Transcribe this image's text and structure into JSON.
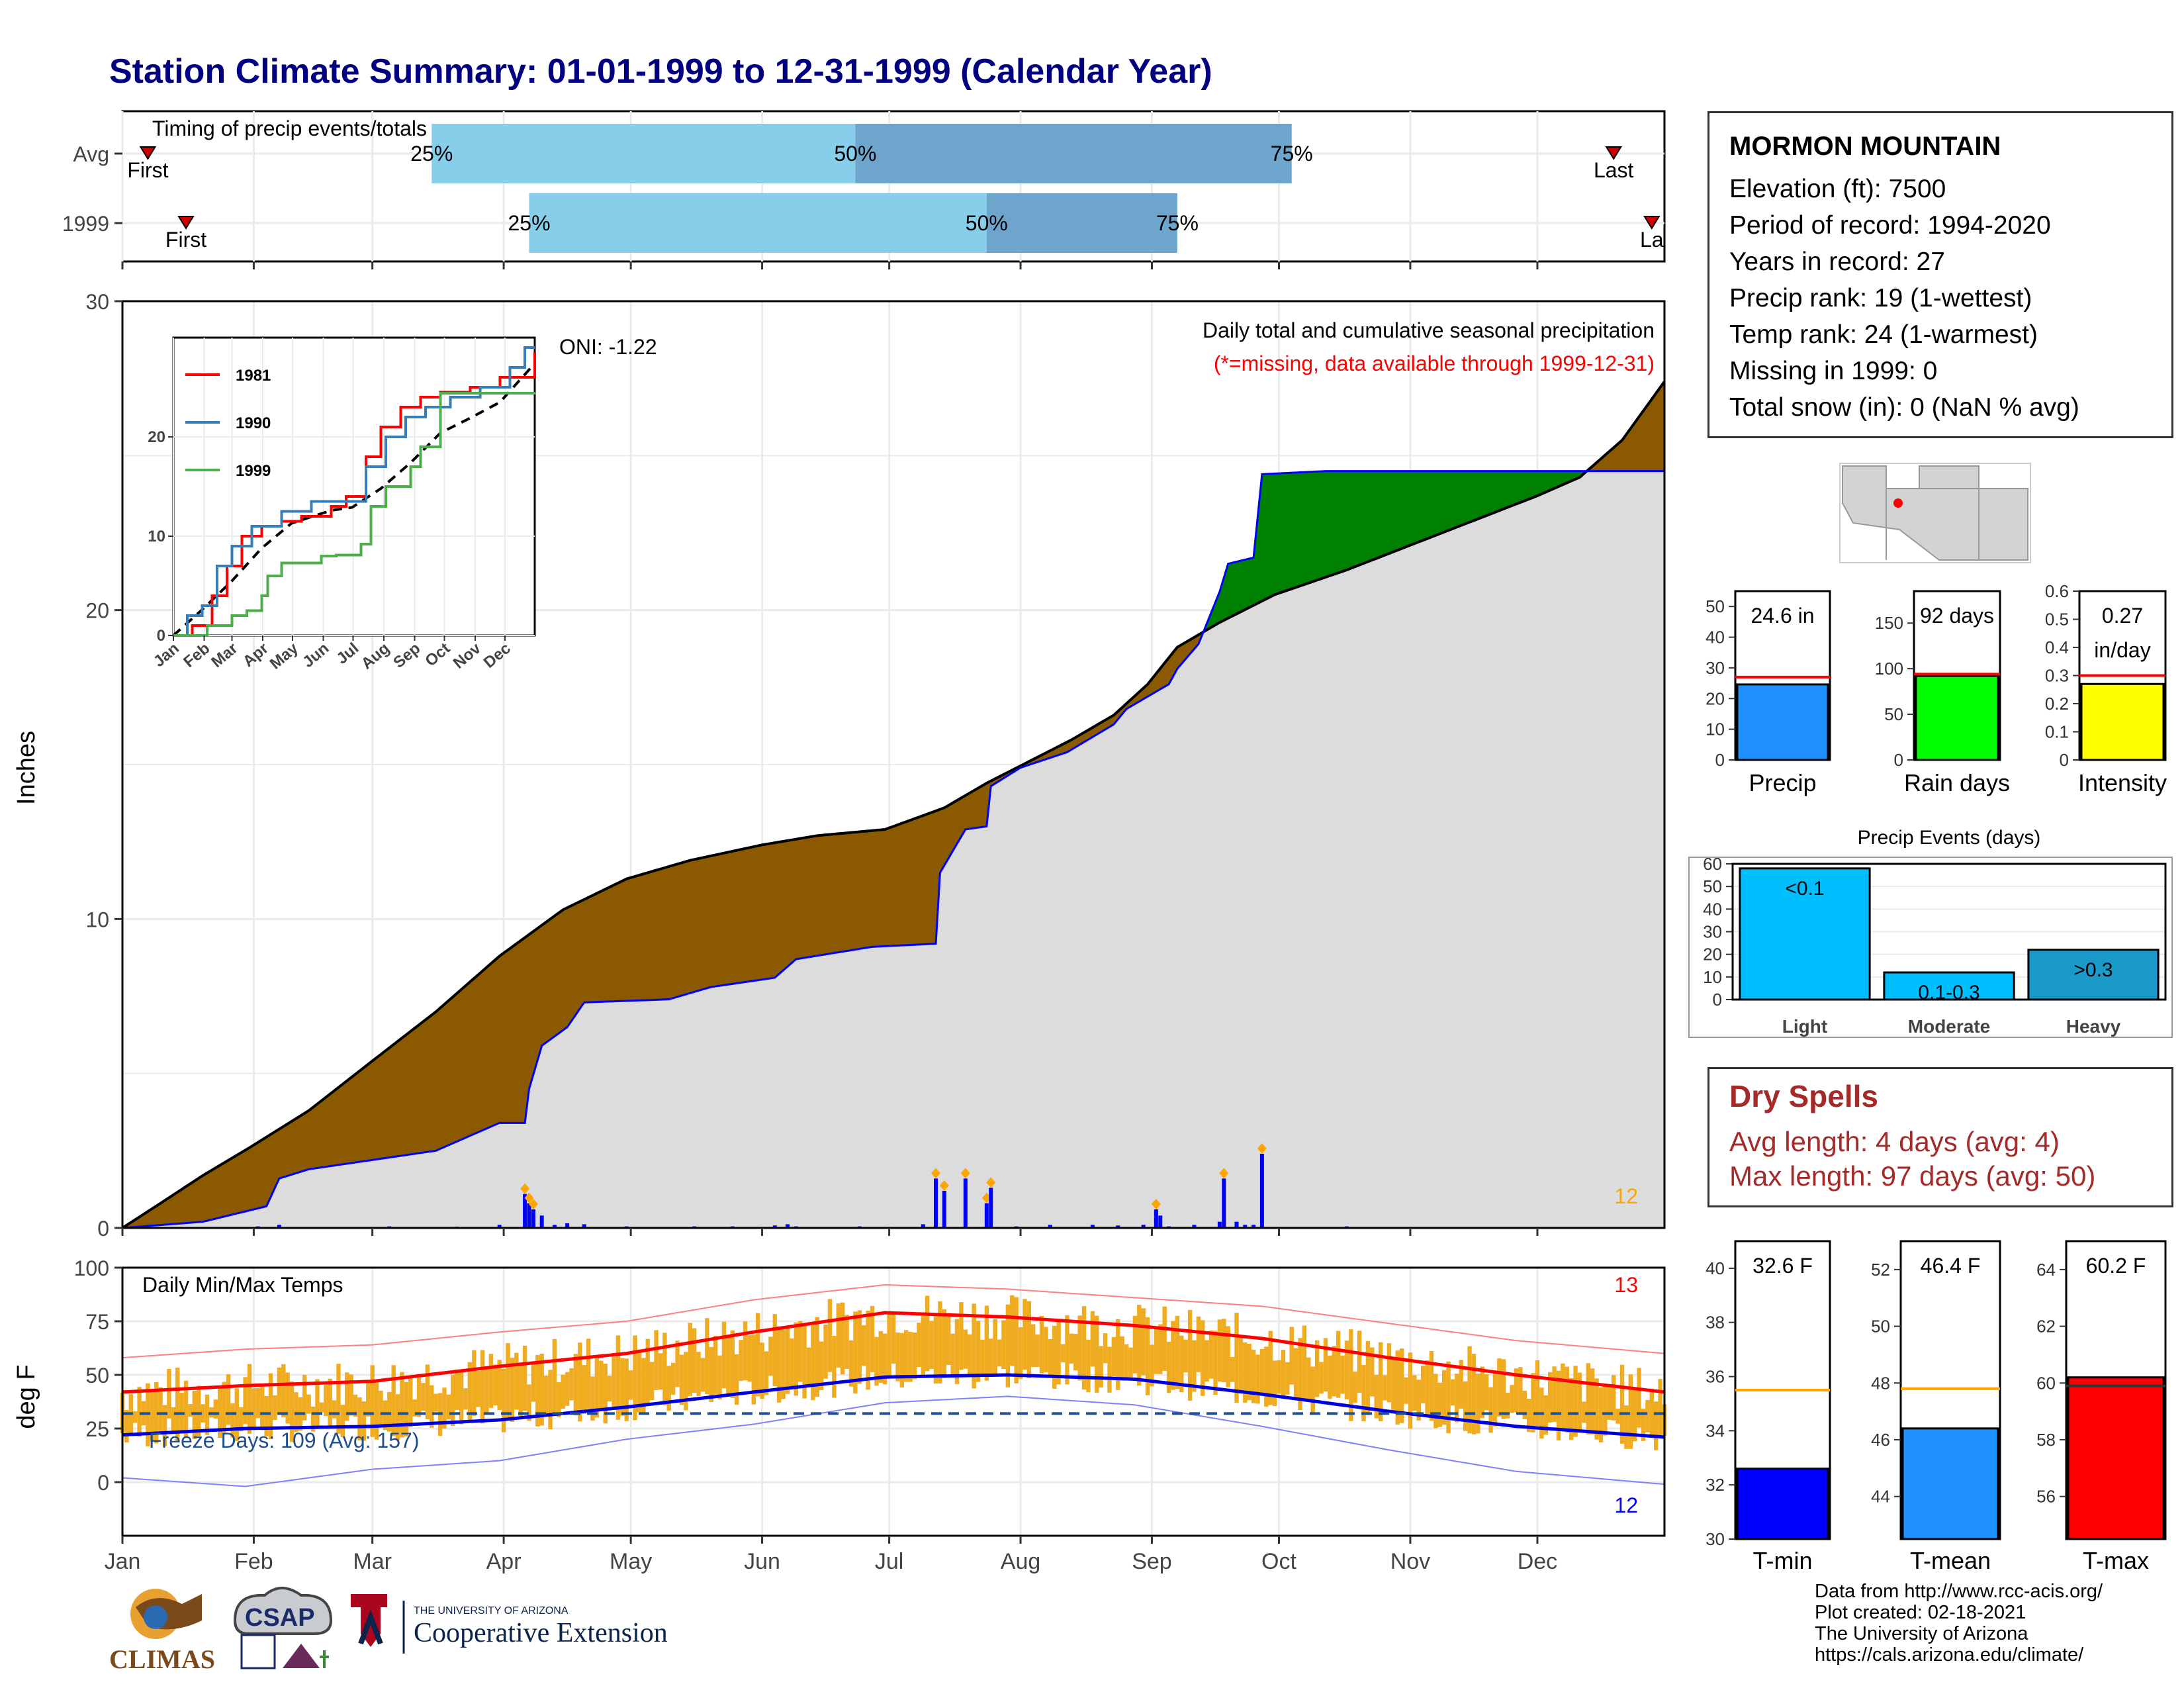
{
  "page_title": "Station Climate Summary: 01-01-1999 to 12-31-1999 (Calendar Year)",
  "station": {
    "name": "MORMON MOUNTAIN",
    "rows": [
      "Elevation (ft): 7500",
      "Period of record: 1994-2020",
      "Years in record: 27",
      "Precip rank: 19 (1-wettest)",
      "Temp rank: 24 (1-warmest)",
      "Missing in 1999: 0",
      "Total snow (in): 0 (NaN % avg)"
    ]
  },
  "dry_spells": {
    "heading": "Dry Spells",
    "avg": "Avg length: 4 days (avg: 4)",
    "max": "Max length: 97 days (avg: 50)"
  },
  "credits": [
    "Data from http://www.rcc-acis.org/",
    "Plot created: 02-18-2021",
    "The University of Arizona",
    "https://cals.arizona.edu/climate/"
  ],
  "logos": {
    "climas": "CLIMAS",
    "csap": "CSAP",
    "ua_line1": "THE UNIVERSITY OF ARIZONA",
    "ua_line2": "Cooperative Extension"
  },
  "colors": {
    "title": "#000080",
    "precip_deficit": "#8b5a00",
    "precip_surplus": "#008000",
    "avg_area": "#dcdcdc",
    "daily_precip": "#0000ff",
    "temp_bar": "#f0ac20",
    "tmax_line": "#ff0000",
    "tmin_line": "#0000dd",
    "timing_light": "#87ceeb",
    "timing_dark": "#6ea5cd"
  },
  "chart_data": [
    {
      "id": "timing",
      "type": "bar",
      "title": "Timing of precip events/totals",
      "rows": [
        {
          "label": "Avg",
          "first_doy": 7,
          "last_doy": 353,
          "q25": 74,
          "q50": 174,
          "q75": 277
        },
        {
          "label": "1999",
          "first_doy": 16,
          "last_doy": 362,
          "q25": 97,
          "q50": 205,
          "q75": 250
        }
      ],
      "quantile_labels": [
        "25%",
        "50%",
        "75%"
      ],
      "first_label": "First",
      "last_label": "Last",
      "last_label_1999": "La"
    },
    {
      "id": "cumulative",
      "type": "area",
      "title": "Daily total and cumulative seasonal precipitation",
      "subtitle": "(*=missing, data available through 1999-12-31)",
      "annotation": "ONI: -1.22",
      "corner_label": "12",
      "ylabel": "Inches",
      "ylim": [
        0,
        30
      ],
      "yticks": [
        0,
        10,
        20,
        30
      ],
      "avg_cumulative": [
        [
          1,
          0
        ],
        [
          10,
          0.8
        ],
        [
          20,
          1.7
        ],
        [
          31,
          2.6
        ],
        [
          45,
          3.8
        ],
        [
          59,
          5.3
        ],
        [
          75,
          7.0
        ],
        [
          90,
          8.8
        ],
        [
          105,
          10.3
        ],
        [
          120,
          11.3
        ],
        [
          135,
          11.9
        ],
        [
          152,
          12.4
        ],
        [
          165,
          12.7
        ],
        [
          181,
          12.9
        ],
        [
          195,
          13.6
        ],
        [
          205,
          14.4
        ],
        [
          215,
          15.1
        ],
        [
          225,
          15.8
        ],
        [
          235,
          16.6
        ],
        [
          243,
          17.6
        ],
        [
          250,
          18.8
        ],
        [
          260,
          19.6
        ],
        [
          273,
          20.5
        ],
        [
          290,
          21.3
        ],
        [
          305,
          22.1
        ],
        [
          320,
          22.9
        ],
        [
          335,
          23.7
        ],
        [
          345,
          24.3
        ],
        [
          355,
          25.5
        ],
        [
          365,
          27.4
        ]
      ],
      "obs_cumulative": [
        [
          1,
          0
        ],
        [
          20,
          0.2
        ],
        [
          35,
          0.7
        ],
        [
          38,
          1.6
        ],
        [
          45,
          1.9
        ],
        [
          60,
          2.2
        ],
        [
          75,
          2.5
        ],
        [
          90,
          3.4
        ],
        [
          96,
          3.4
        ],
        [
          97,
          4.5
        ],
        [
          100,
          5.9
        ],
        [
          106,
          6.5
        ],
        [
          110,
          7.3
        ],
        [
          130,
          7.4
        ],
        [
          140,
          7.8
        ],
        [
          155,
          8.1
        ],
        [
          160,
          8.7
        ],
        [
          178,
          9.1
        ],
        [
          193,
          9.2
        ],
        [
          194,
          11.5
        ],
        [
          200,
          12.9
        ],
        [
          205,
          13.0
        ],
        [
          206,
          14.3
        ],
        [
          213,
          14.9
        ],
        [
          224,
          15.4
        ],
        [
          235,
          16.3
        ],
        [
          238,
          16.8
        ],
        [
          248,
          17.6
        ],
        [
          250,
          18.1
        ],
        [
          255,
          18.9
        ],
        [
          260,
          20.6
        ],
        [
          262,
          21.5
        ],
        [
          268,
          21.7
        ],
        [
          270,
          24.4
        ],
        [
          285,
          24.5
        ],
        [
          365,
          24.5
        ]
      ],
      "daily_precip": [
        [
          5,
          0.05
        ],
        [
          18,
          0.02
        ],
        [
          33,
          0.05
        ],
        [
          38,
          0.1
        ],
        [
          50,
          0.03
        ],
        [
          64,
          0.05
        ],
        [
          72,
          0.03
        ],
        [
          80,
          0.04
        ],
        [
          90,
          0.1
        ],
        [
          96,
          1.1
        ],
        [
          97,
          0.8
        ],
        [
          98,
          0.6
        ],
        [
          100,
          0.4
        ],
        [
          103,
          0.1
        ],
        [
          106,
          0.15
        ],
        [
          110,
          0.12
        ],
        [
          120,
          0.05
        ],
        [
          128,
          0.03
        ],
        [
          136,
          0.05
        ],
        [
          145,
          0.05
        ],
        [
          155,
          0.08
        ],
        [
          158,
          0.12
        ],
        [
          160,
          0.05
        ],
        [
          175,
          0.05
        ],
        [
          190,
          0.12
        ],
        [
          193,
          1.6
        ],
        [
          195,
          1.2
        ],
        [
          200,
          1.6
        ],
        [
          205,
          0.8
        ],
        [
          206,
          1.3
        ],
        [
          212,
          0.05
        ],
        [
          220,
          0.1
        ],
        [
          230,
          0.1
        ],
        [
          236,
          0.08
        ],
        [
          242,
          0.1
        ],
        [
          245,
          0.6
        ],
        [
          246,
          0.4
        ],
        [
          248,
          0.05
        ],
        [
          254,
          0.1
        ],
        [
          260,
          0.2
        ],
        [
          261,
          1.6
        ],
        [
          264,
          0.2
        ],
        [
          266,
          0.1
        ],
        [
          268,
          0.1
        ],
        [
          270,
          2.4
        ],
        [
          290,
          0.05
        ]
      ]
    },
    {
      "id": "inset",
      "type": "line",
      "series": [
        {
          "name": "1981",
          "color": "#ff0000",
          "values": [
            [
              1,
              0
            ],
            [
              20,
              1
            ],
            [
              40,
              4
            ],
            [
              55,
              7
            ],
            [
              70,
              10
            ],
            [
              90,
              11
            ],
            [
              110,
              11.5
            ],
            [
              130,
              12
            ],
            [
              160,
              13
            ],
            [
              175,
              14
            ],
            [
              195,
              18
            ],
            [
              210,
              21
            ],
            [
              230,
              23
            ],
            [
              250,
              24
            ],
            [
              270,
              24.5
            ],
            [
              300,
              25
            ],
            [
              330,
              26
            ],
            [
              365,
              28.5
            ]
          ]
        },
        {
          "name": "1990",
          "color": "#377eb8",
          "values": [
            [
              1,
              0
            ],
            [
              15,
              2
            ],
            [
              30,
              3
            ],
            [
              45,
              7
            ],
            [
              60,
              9
            ],
            [
              80,
              11
            ],
            [
              110,
              12.5
            ],
            [
              140,
              13.5
            ],
            [
              170,
              13.5
            ],
            [
              195,
              17
            ],
            [
              215,
              20
            ],
            [
              235,
              22
            ],
            [
              255,
              23
            ],
            [
              280,
              24
            ],
            [
              310,
              25
            ],
            [
              340,
              27
            ],
            [
              355,
              29
            ],
            [
              365,
              29
            ]
          ]
        },
        {
          "name": "1999",
          "color": "#4daf4a",
          "values": [
            [
              1,
              0
            ],
            [
              35,
              1
            ],
            [
              60,
              2
            ],
            [
              75,
              2.5
            ],
            [
              90,
              4
            ],
            [
              96,
              6
            ],
            [
              110,
              7.3
            ],
            [
              150,
              8.0
            ],
            [
              165,
              8.1
            ],
            [
              190,
              9.2
            ],
            [
              200,
              13
            ],
            [
              215,
              15
            ],
            [
              240,
              17
            ],
            [
              250,
              19
            ],
            [
              270,
              24.4
            ],
            [
              365,
              24.5
            ]
          ]
        }
      ],
      "avg": [
        [
          1,
          0
        ],
        [
          30,
          2.6
        ],
        [
          60,
          5.5
        ],
        [
          90,
          8.8
        ],
        [
          120,
          11.3
        ],
        [
          160,
          12.6
        ],
        [
          181,
          12.9
        ],
        [
          210,
          14.8
        ],
        [
          240,
          17.4
        ],
        [
          270,
          20.4
        ],
        [
          300,
          21.9
        ],
        [
          330,
          23.5
        ],
        [
          365,
          27.4
        ]
      ],
      "xticks": [
        "Jan",
        "Feb",
        "Mar",
        "Apr",
        "May",
        "Jun",
        "Jul",
        "Aug",
        "Sep",
        "Oct",
        "Nov",
        "Dec"
      ],
      "yticks": [
        0,
        10,
        20
      ],
      "ylim": [
        0,
        30
      ]
    },
    {
      "id": "temps",
      "type": "bar",
      "title": "Daily Min/Max Temps",
      "freeze_label": "Freeze Days: 109 (Avg: 157)",
      "corner_red": "13",
      "corner_blue": "12",
      "ylabel": "deg F",
      "ylim": [
        -25,
        100
      ],
      "yticks": [
        0,
        25,
        50,
        75,
        100
      ],
      "freeze_line": 32,
      "avg_tmax": [
        [
          1,
          42
        ],
        [
          30,
          45
        ],
        [
          60,
          47
        ],
        [
          90,
          54
        ],
        [
          120,
          60
        ],
        [
          150,
          70
        ],
        [
          181,
          79
        ],
        [
          210,
          77
        ],
        [
          240,
          73
        ],
        [
          270,
          67
        ],
        [
          300,
          58
        ],
        [
          330,
          50
        ],
        [
          365,
          42
        ]
      ],
      "avg_tmin": [
        [
          1,
          22
        ],
        [
          30,
          25
        ],
        [
          60,
          26
        ],
        [
          90,
          29
        ],
        [
          120,
          35
        ],
        [
          150,
          42
        ],
        [
          181,
          49
        ],
        [
          210,
          50
        ],
        [
          240,
          48
        ],
        [
          270,
          41
        ],
        [
          300,
          33
        ],
        [
          330,
          26
        ],
        [
          365,
          21
        ]
      ],
      "record_high": [
        [
          1,
          58
        ],
        [
          30,
          62
        ],
        [
          60,
          64
        ],
        [
          90,
          70
        ],
        [
          120,
          75
        ],
        [
          150,
          85
        ],
        [
          181,
          92
        ],
        [
          210,
          90
        ],
        [
          240,
          86
        ],
        [
          270,
          82
        ],
        [
          300,
          74
        ],
        [
          330,
          66
        ],
        [
          365,
          60
        ]
      ],
      "record_low": [
        [
          1,
          2
        ],
        [
          30,
          -2
        ],
        [
          60,
          6
        ],
        [
          90,
          10
        ],
        [
          120,
          20
        ],
        [
          150,
          27
        ],
        [
          181,
          37
        ],
        [
          210,
          40
        ],
        [
          240,
          36
        ],
        [
          270,
          26
        ],
        [
          300,
          15
        ],
        [
          330,
          5
        ],
        [
          365,
          -1
        ]
      ],
      "xticks": [
        "Jan",
        "Feb",
        "Mar",
        "Apr",
        "May",
        "Jun",
        "Jul",
        "Aug",
        "Sep",
        "Oct",
        "Nov",
        "Dec"
      ]
    },
    {
      "id": "gauges_precip",
      "type": "bar",
      "panels": [
        {
          "label": "Precip",
          "value": 24.6,
          "value_text": "24.6 in",
          "avg": 27,
          "ylim": [
            0,
            55
          ],
          "yticks": [
            0,
            10,
            20,
            30,
            40,
            50
          ],
          "color": "#1e90ff"
        },
        {
          "label": "Rain days",
          "value": 92,
          "value_text": "92 days",
          "avg": 94,
          "ylim": [
            0,
            185
          ],
          "yticks": [
            0,
            50,
            100,
            150
          ],
          "color": "#00ff00"
        },
        {
          "label": "Intensity",
          "value": 0.27,
          "value_text": "0.27",
          "value_text2": "in/day",
          "avg": 0.3,
          "ylim": [
            0,
            0.6
          ],
          "yticks": [
            0.0,
            0.1,
            0.2,
            0.3,
            0.4,
            0.5,
            0.6
          ],
          "color": "#ffff00"
        }
      ]
    },
    {
      "id": "precip_events",
      "type": "bar",
      "title": "Precip Events (days)",
      "categories": [
        "Light",
        "Moderate",
        "Heavy"
      ],
      "bar_labels": [
        "<0.1",
        "0.1-0.3",
        ">0.3"
      ],
      "values": [
        58,
        12,
        22
      ],
      "colors": [
        "#00bfff",
        "#00bfff",
        "#1a9ac9"
      ],
      "ylim": [
        0,
        60
      ],
      "yticks": [
        0,
        10,
        20,
        30,
        40,
        50,
        60
      ]
    },
    {
      "id": "gauges_temp",
      "type": "bar",
      "panels": [
        {
          "label": "T-min",
          "value": 32.6,
          "value_text": "32.6 F",
          "avg": 35.5,
          "ylim": [
            30,
            41
          ],
          "yticks": [
            30,
            32,
            34,
            36,
            38,
            40
          ],
          "color": "#0000ff"
        },
        {
          "label": "T-mean",
          "value": 46.4,
          "value_text": "46.4 F",
          "avg": 47.8,
          "ylim": [
            42.5,
            53
          ],
          "yticks": [
            44,
            46,
            48,
            50,
            52
          ],
          "color": "#1e90ff"
        },
        {
          "label": "T-max",
          "value": 60.2,
          "value_text": "60.2 F",
          "avg": 59.9,
          "ylim": [
            54.5,
            65
          ],
          "yticks": [
            56,
            58,
            60,
            62,
            64
          ],
          "color": "#ff0000"
        }
      ]
    }
  ]
}
